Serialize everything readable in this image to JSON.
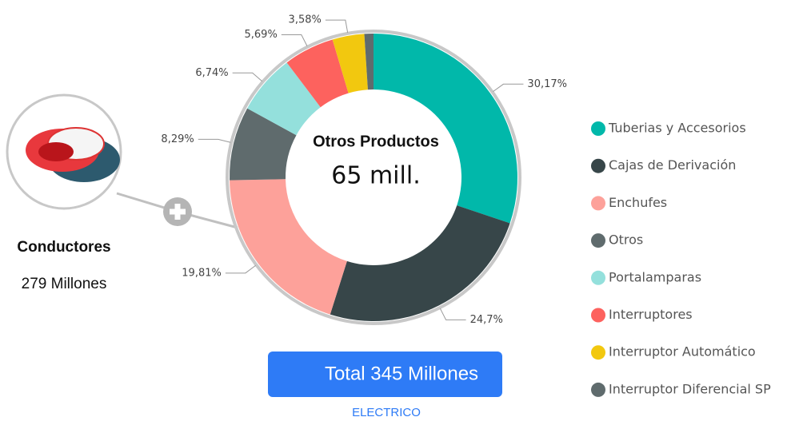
{
  "chart_data": {
    "type": "donut",
    "center_title": "Otros Productos",
    "center_value": "65 mill.",
    "categories": [
      "Tuberias y Accesorios",
      "Cajas de Derivación",
      "Enchufes",
      "Otros",
      "Portalamparas",
      "Interruptores",
      "Interruptor Automático",
      "Interruptor Diferencial SP"
    ],
    "values": [
      30.17,
      24.7,
      19.81,
      8.29,
      6.74,
      5.69,
      3.58,
      1.02
    ],
    "value_labels": [
      "30,17%",
      "24,7%",
      "19,81%",
      "8,29%",
      "6,74%",
      "5,69%",
      "3,58%",
      null
    ],
    "colors": [
      "#01b8aa",
      "#374649",
      "#fda19a",
      "#5f6b6d",
      "#94e0dc",
      "#fd625e",
      "#f2c80f",
      "#5f6b6d"
    ],
    "legend": "right"
  },
  "side_panel": {
    "title": "Conductores",
    "value": "279 Millones"
  },
  "total_button": "Total 345 Millones",
  "footer": "ELECTRICO"
}
